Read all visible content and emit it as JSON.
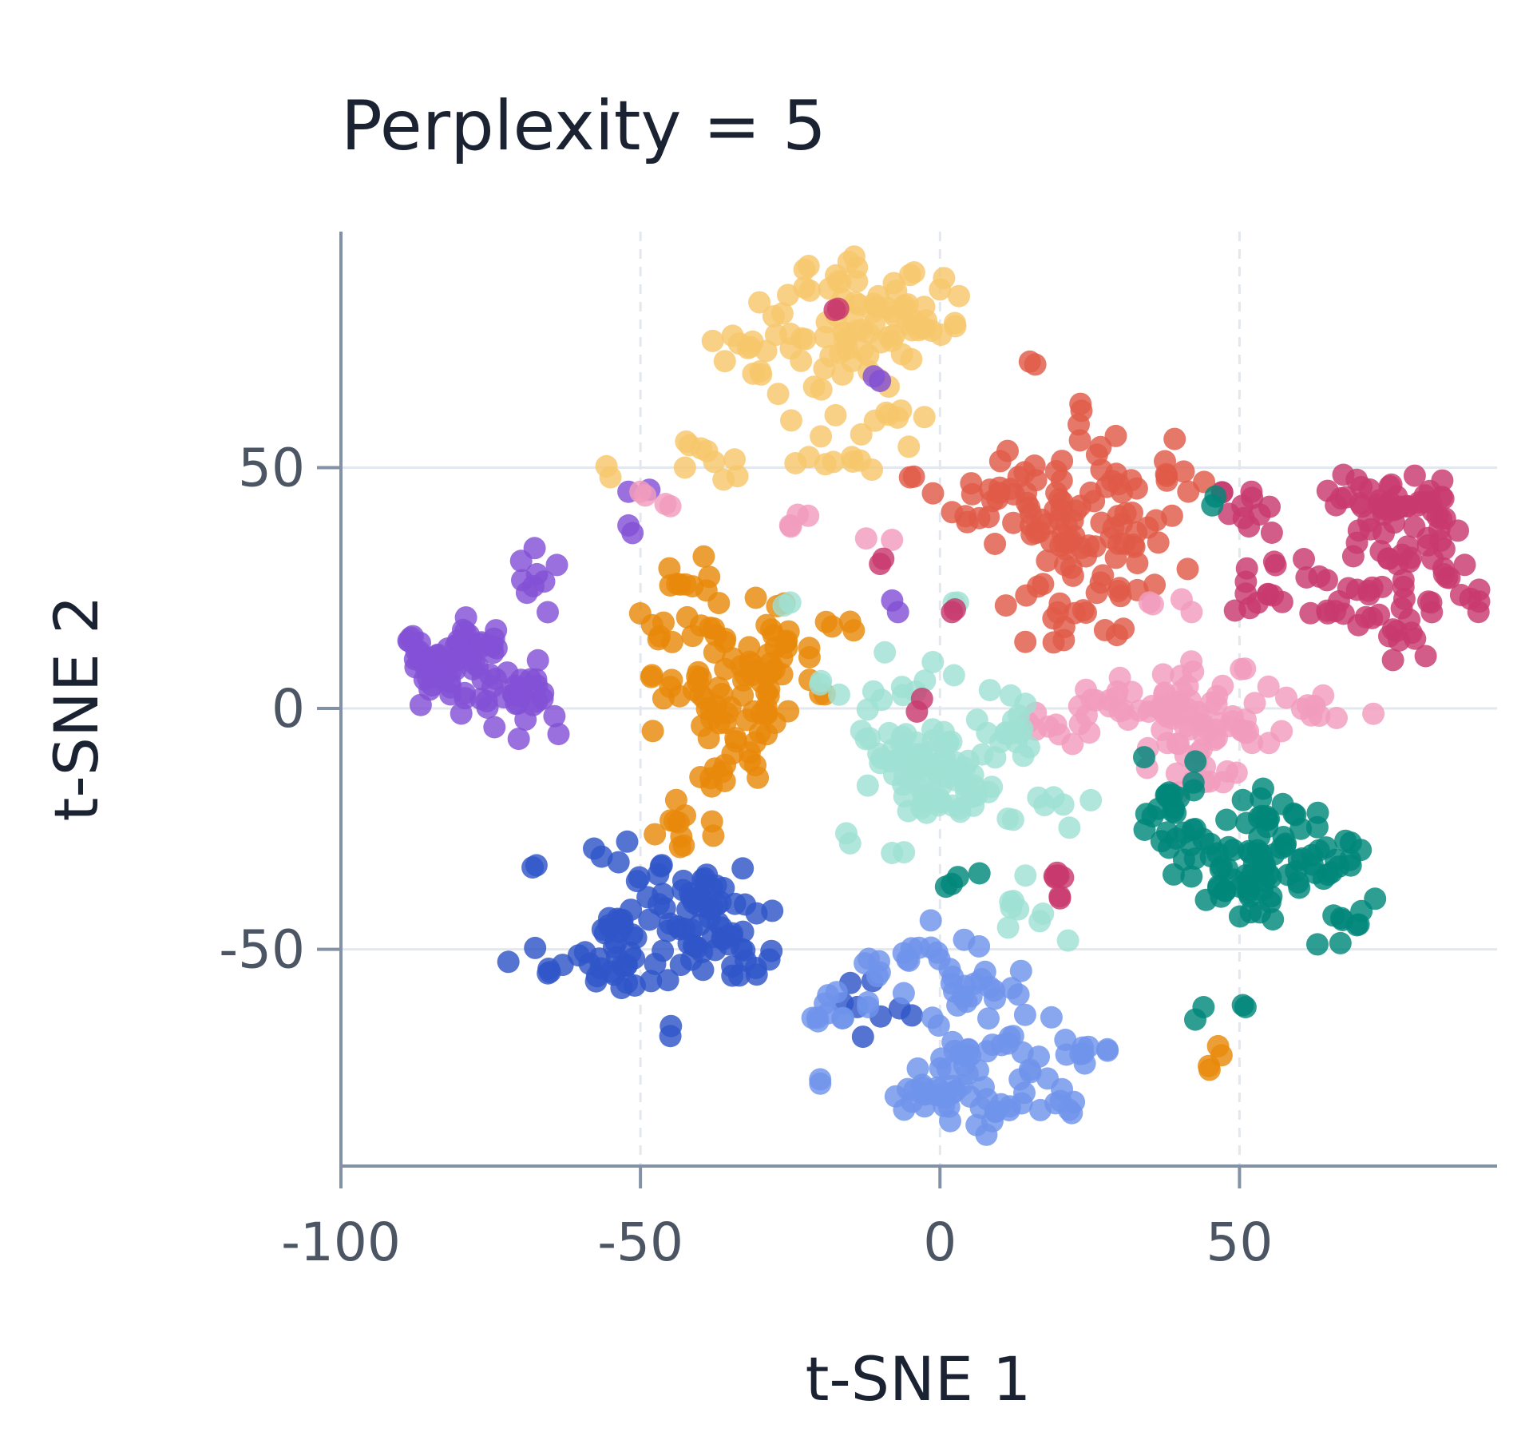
{
  "chart_data": {
    "type": "scatter",
    "title": "Perplexity = 5",
    "xlabel": "t-SNE 1",
    "ylabel": "t-SNE 2",
    "xlim": [
      -100,
      93
    ],
    "ylim": [
      -95,
      99
    ],
    "xticks": [
      -100,
      -50,
      0,
      50
    ],
    "xtick_labels": [
      "-100",
      "-50",
      "0",
      "50"
    ],
    "yticks": [
      -50,
      0,
      50
    ],
    "ytick_labels": [
      "-50",
      "0",
      "50"
    ],
    "grid": true,
    "legend": "none",
    "point_opacity": 0.82,
    "clusters": [
      {
        "color": "#f6c76b",
        "center": [
          -15,
          72
        ],
        "spread": [
          14,
          10
        ],
        "n": 120,
        "extra": [
          [
            -55,
            48
          ],
          [
            -30,
            70
          ],
          [
            0,
            87
          ],
          [
            -5,
            90
          ]
        ]
      },
      {
        "color": "#e05a48",
        "center": [
          15,
          38
        ],
        "spread": [
          12,
          13
        ],
        "n": 130,
        "extra": [
          [
            15,
            72
          ],
          [
            30,
            25
          ],
          [
            -5,
            48
          ]
        ]
      },
      {
        "color": "#c8396e",
        "center": [
          68,
          35
        ],
        "spread": [
          12,
          11
        ],
        "n": 125,
        "extra": [
          [
            52,
            45
          ],
          [
            82,
            22
          ],
          [
            75,
            15
          ]
        ]
      },
      {
        "color": "#8250d6",
        "center": [
          -76,
          8
        ],
        "spread": [
          9,
          12
        ],
        "n": 100,
        "extra": [
          [
            -52,
            38
          ],
          [
            -52,
            45
          ],
          [
            -88,
            15
          ],
          [
            -10,
            68
          ],
          [
            -7,
            20
          ]
        ]
      },
      {
        "color": "#e8890b",
        "center": [
          -35,
          5
        ],
        "spread": [
          8,
          14
        ],
        "n": 125,
        "extra": [
          [
            -15,
            18
          ],
          [
            -18,
            17
          ],
          [
            -20,
            3
          ],
          [
            45,
            -75
          ],
          [
            47,
            -72
          ]
        ]
      },
      {
        "color": "#f29cbd",
        "center": [
          42,
          0
        ],
        "spread": [
          13,
          7
        ],
        "n": 110,
        "extra": [
          [
            -22,
            40
          ],
          [
            -25,
            38
          ],
          [
            -45,
            42
          ],
          [
            -50,
            45
          ],
          [
            -8,
            35
          ],
          [
            35,
            22
          ],
          [
            42,
            20
          ]
        ]
      },
      {
        "color": "#9fe0d3",
        "center": [
          2,
          -12
        ],
        "spread": [
          12,
          11
        ],
        "n": 125,
        "extra": [
          [
            -15,
            -28
          ],
          [
            -8,
            -30
          ],
          [
            -20,
            5
          ],
          [
            3,
            22
          ],
          [
            -25,
            22
          ]
        ]
      },
      {
        "color": "#00887a",
        "center": [
          55,
          -32
        ],
        "spread": [
          13,
          11
        ],
        "n": 125,
        "extra": [
          [
            3,
            -35
          ],
          [
            1,
            -37
          ],
          [
            44,
            -62
          ],
          [
            51,
            -62
          ],
          [
            46,
            44
          ]
        ]
      },
      {
        "color": "#3056c8",
        "center": [
          -45,
          -45
        ],
        "spread": [
          13,
          9
        ],
        "n": 125,
        "extra": [
          [
            -68,
            -33
          ],
          [
            -45,
            -68
          ],
          [
            -28,
            -42
          ]
        ]
      },
      {
        "color": "#6f94eb",
        "center": [
          2,
          -70
        ],
        "spread": [
          11,
          10
        ],
        "n": 125,
        "extra": [
          [
            -20,
            -77
          ],
          [
            22,
            -84
          ],
          [
            -12,
            -62
          ],
          [
            15,
            -75
          ]
        ]
      },
      {
        "color": "#c8396e",
        "center": [
          18,
          -35
        ],
        "spread": [
          1.5,
          1.5
        ],
        "n": 6,
        "extra": [
          [
            -17,
            83
          ],
          [
            -3,
            2
          ],
          [
            2,
            20
          ],
          [
            -10,
            30
          ],
          [
            20,
            -39
          ]
        ]
      }
    ]
  }
}
